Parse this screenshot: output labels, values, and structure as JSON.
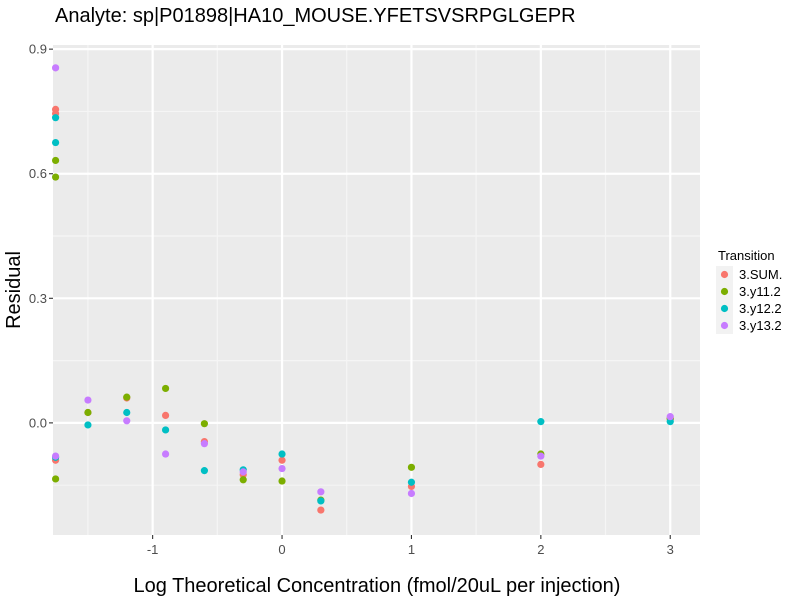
{
  "chart_data": {
    "type": "scatter",
    "title": "Analyte: sp|P01898|HA10_MOUSE.YFETSVSRPGLGEPR",
    "xlabel": "Log Theoretical Concentration (fmol/20uL per injection)",
    "ylabel": "Residual",
    "xlim": [
      -1.77,
      3.23
    ],
    "ylim": [
      -0.27,
      0.91
    ],
    "x_ticks": [
      -1,
      0,
      1,
      2,
      3
    ],
    "x_tick_labels": [
      "-1",
      "0",
      "1",
      "2",
      "3"
    ],
    "y_ticks": [
      0.0,
      0.3,
      0.6,
      0.9
    ],
    "y_tick_labels": [
      "0.0",
      "0.3",
      "0.6",
      "0.9"
    ],
    "grid": true,
    "legend_position": "right",
    "legend_title": "Transition",
    "series": [
      {
        "name": "3.SUM.",
        "color": "#F8766D",
        "x": [
          -1.75,
          -1.75,
          -1.75,
          -1.5,
          -1.2,
          -0.9,
          -0.6,
          -0.3,
          0,
          0.3,
          1,
          2,
          3
        ],
        "y": [
          0.755,
          0.745,
          -0.09,
          0.025,
          0.06,
          0.018,
          -0.045,
          -0.125,
          -0.09,
          -0.21,
          -0.153,
          -0.1,
          0.01
        ]
      },
      {
        "name": "3.y11.2",
        "color": "#7CAE00",
        "x": [
          -1.75,
          -1.75,
          -1.75,
          -1.5,
          -1.2,
          -0.9,
          -0.6,
          -0.3,
          0,
          0.3,
          1,
          2,
          3
        ],
        "y": [
          0.632,
          0.592,
          -0.135,
          0.025,
          0.062,
          0.083,
          -0.002,
          -0.137,
          -0.14,
          -0.186,
          -0.107,
          -0.075,
          0.01
        ]
      },
      {
        "name": "3.y12.2",
        "color": "#00BFC4",
        "x": [
          -1.75,
          -1.75,
          -1.75,
          -1.5,
          -1.2,
          -0.9,
          -0.6,
          -0.3,
          0,
          0.3,
          1,
          2,
          3
        ],
        "y": [
          0.735,
          0.675,
          -0.083,
          -0.005,
          0.025,
          -0.017,
          -0.115,
          -0.113,
          -0.075,
          -0.188,
          -0.143,
          0.003,
          0.003
        ]
      },
      {
        "name": "3.y13.2",
        "color": "#C77CFF",
        "x": [
          -1.75,
          -1.75,
          -1.5,
          -1.2,
          -0.9,
          -0.6,
          -0.3,
          0,
          0.3,
          1,
          2,
          3
        ],
        "y": [
          0.855,
          -0.08,
          0.055,
          0.005,
          -0.075,
          -0.05,
          -0.118,
          -0.11,
          -0.166,
          -0.17,
          -0.08,
          0.015
        ]
      }
    ]
  },
  "colors": {
    "panel_background": "#EBEBEB",
    "grid_major": "#FFFFFF",
    "grid_minor": "#F5F5F5",
    "tick_label": "#4D4D4D",
    "legend_key_background": "#F2F2F2"
  }
}
